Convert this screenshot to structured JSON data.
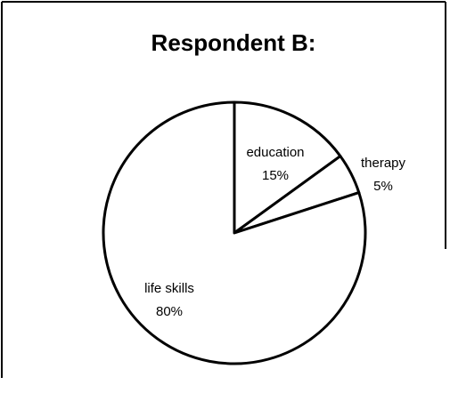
{
  "chart_data": {
    "type": "pie",
    "title": "Respondent B:",
    "categories": [
      "education",
      "therapy",
      "life skills"
    ],
    "values": [
      15,
      5,
      80
    ],
    "value_labels": [
      "15%",
      "5%",
      "80%"
    ],
    "color": "#ffffff",
    "edge_color": "#000000"
  }
}
